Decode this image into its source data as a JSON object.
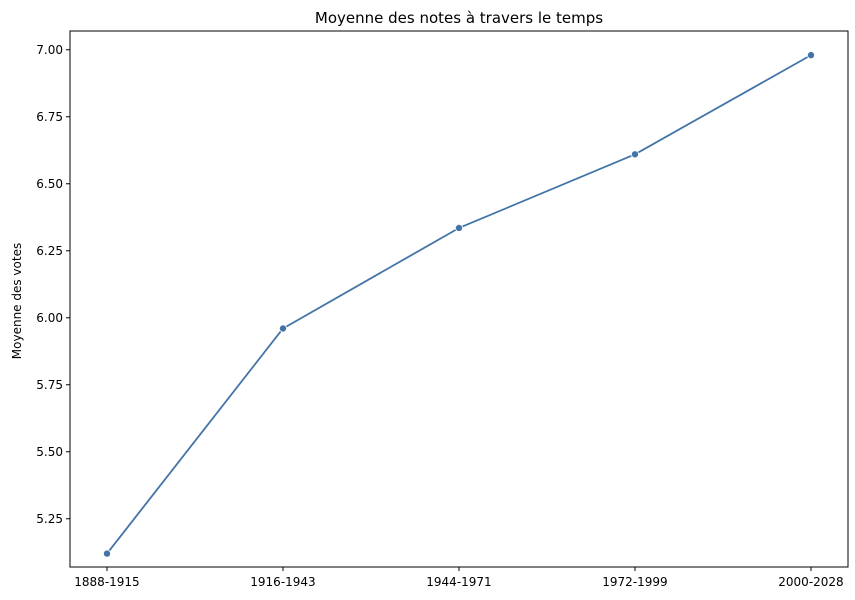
{
  "chart_data": {
    "type": "line",
    "title": "Moyenne des notes à travers le temps",
    "xlabel": "",
    "ylabel": "Moyenne des votes",
    "categories": [
      "1888-1915",
      "1916-1943",
      "1944-1971",
      "1972-1999",
      "2000-2028"
    ],
    "series": [
      {
        "values": [
          5.12,
          5.96,
          6.335,
          6.61,
          6.98
        ],
        "color": "#4374a8",
        "marker": "circle"
      }
    ],
    "ylim": [
      5.07,
      7.07
    ],
    "yticks": [
      5.25,
      5.5,
      5.75,
      6.0,
      6.25,
      6.5,
      6.75,
      7.0
    ],
    "ytick_labels": [
      "5.25",
      "5.50",
      "5.75",
      "6.00",
      "6.25",
      "6.50",
      "6.75",
      "7.00"
    ],
    "grid": false,
    "legend": "none"
  }
}
